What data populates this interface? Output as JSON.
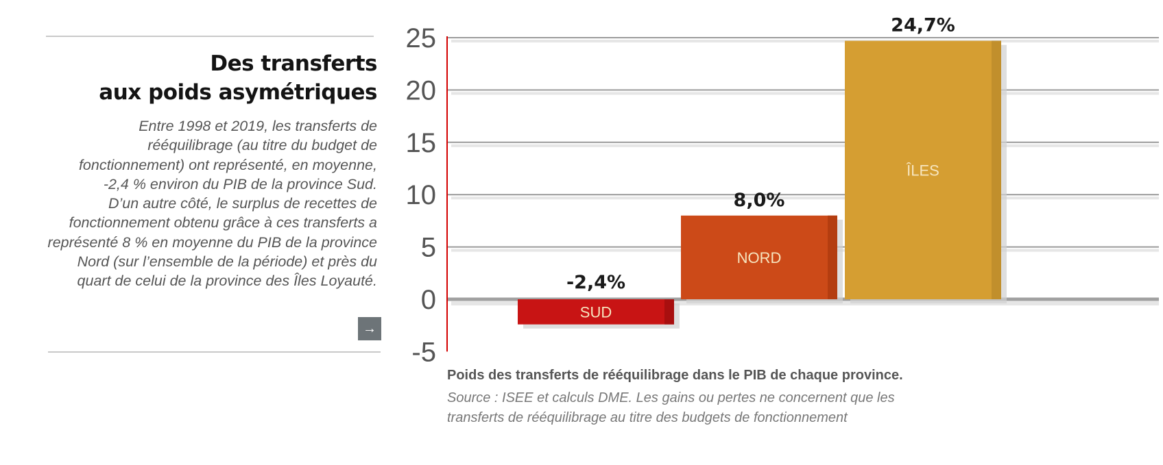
{
  "article": {
    "title_lines": [
      "Des transferts",
      "aux poids asymétriques"
    ],
    "paragraph_lines": [
      "Entre 1998 et 2019, les transferts de",
      "rééquilibrage (au titre du budget de",
      "fonctionnement) ont représenté, en moyenne,",
      "-2,4 % environ du PIB de la province Sud.",
      "D’un autre côté, le surplus de recettes de",
      "fonctionnement obtenu grâce à ces transferts a",
      "représenté 8 % en moyenne du PIB de la province",
      "Nord (sur l’ensemble de la période) et près du",
      "quart de celui de la province des Îles Loyauté."
    ],
    "more_icon": "arrow-right-icon",
    "more_glyph": "→"
  },
  "chart_data": {
    "type": "bar",
    "categories": [
      "SUD",
      "NORD",
      "ÎLES"
    ],
    "values": [
      -2.4,
      8.0,
      24.7
    ],
    "data_labels": [
      "-2,4%",
      "8,0%",
      "24,7%"
    ],
    "colors": [
      "#c81414",
      "#cc4a18",
      "#d59e32"
    ],
    "side_colors": [
      "#a80f0f",
      "#b43d10",
      "#c18f2c"
    ],
    "ylim": [
      -5,
      25
    ],
    "yticks": [
      25,
      20,
      15,
      10,
      5,
      0,
      -5
    ],
    "ytick_labels": [
      "25",
      "20",
      "15",
      "10",
      "5",
      "0",
      "-5"
    ],
    "grid": true,
    "axis_color": "#d40000",
    "title": "Poids des transferts de rééquilibrage dans le PIB de chaque province.",
    "xlabel": "",
    "ylabel": ""
  },
  "caption": {
    "source_lines": [
      "Source : ISEE et calculs DME. Les gains ou pertes ne concernent que les",
      "transferts de rééquilibrage au titre des budgets de fonctionnement"
    ]
  }
}
